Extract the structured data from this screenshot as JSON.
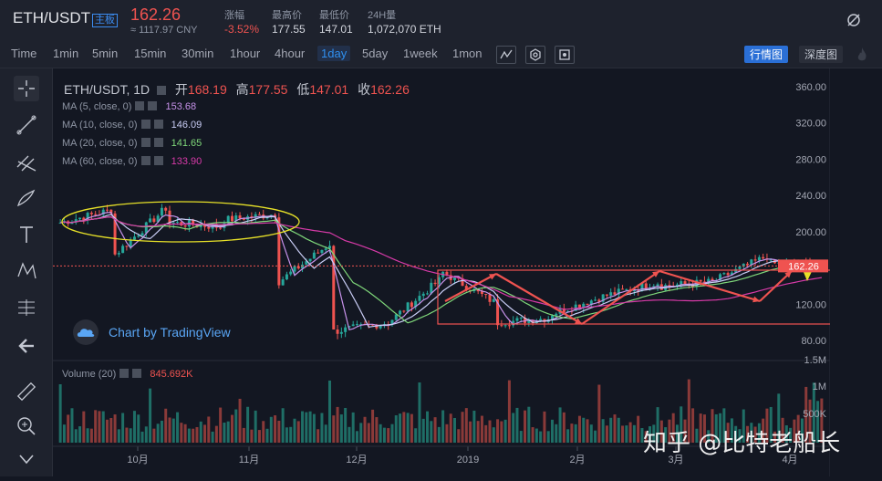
{
  "header": {
    "symbol": "ETH/USDT",
    "badge": "主板",
    "price": "162.26",
    "cny": "≈ 1117.97 CNY",
    "stats": [
      {
        "label": "涨幅",
        "value": "-3.52%",
        "red": true
      },
      {
        "label": "最高价",
        "value": "177.55",
        "red": false
      },
      {
        "label": "最低价",
        "value": "147.01",
        "red": false
      },
      {
        "label": "24H量",
        "value": "1,072,070 ETH",
        "red": false
      }
    ]
  },
  "toolbar": {
    "timeframes": [
      "Time",
      "1min",
      "5min",
      "15min",
      "30min",
      "1hour",
      "4hour",
      "1day",
      "5day",
      "1week",
      "1mon"
    ],
    "active": "1day",
    "market_view": "行情图",
    "depth_view": "深度图"
  },
  "legend": {
    "title": "ETH/USDT, 1D",
    "ohlc": [
      {
        "k": "开",
        "v": "168.19"
      },
      {
        "k": "高",
        "v": "177.55"
      },
      {
        "k": "低",
        "v": "147.01"
      },
      {
        "k": "收",
        "v": "162.26"
      }
    ],
    "ma": [
      {
        "label": "MA (5, close, 0)",
        "value": "153.68",
        "color": "#c792ea"
      },
      {
        "label": "MA (10, close, 0)",
        "value": "146.09",
        "color": "#c9cdf5"
      },
      {
        "label": "MA (20, close, 0)",
        "value": "141.65",
        "color": "#7fd77a"
      },
      {
        "label": "MA (60, close, 0)",
        "value": "133.90",
        "color": "#d73aa8"
      }
    ],
    "volume_label": "Volume (20)",
    "volume_value": "845.692K"
  },
  "branding": {
    "tv": "Chart by TradingView",
    "watermark": "知乎 @比特老船长"
  },
  "chart_data": [
    {
      "type": "candlestick",
      "series": [
        {
          "name": "ETH/USDT, 1D",
          "values": []
        }
      ],
      "close_approx": [
        [
          210,
          225
        ],
        [
          175,
          230
        ],
        [
          210,
          205
        ],
        [
          213,
          220
        ],
        [
          145,
          190
        ],
        [
          90,
          100
        ],
        [
          100,
          150
        ],
        [
          155,
          120
        ],
        [
          100,
          105
        ],
        [
          110,
          130
        ],
        [
          130,
          145
        ],
        [
          140,
          145
        ],
        [
          147,
          175
        ],
        [
          165,
          162.26
        ]
      ],
      "ma_last": {
        "MA5": 153.68,
        "MA10": 146.09,
        "MA20": 141.65,
        "MA60": 133.9
      },
      "last_price": 162.26,
      "y_ticks": [
        "360.00",
        "320.00",
        "280.00",
        "240.00",
        "200.00",
        "162.26",
        "120.00",
        "80.00"
      ],
      "x_ticks": [
        "10月",
        "11月",
        "12月",
        "2019",
        "2月",
        "3月",
        "4月"
      ],
      "ylim": [
        60,
        380
      ]
    },
    {
      "type": "bar",
      "name": "Volume (20)",
      "last_value": "845.692K",
      "y_ticks": [
        "1.5M",
        "1M",
        "500K"
      ]
    }
  ],
  "colors": {
    "up": "#26a69a",
    "down": "#ef5350",
    "bg": "#131722",
    "accent": "#2f8fef"
  }
}
